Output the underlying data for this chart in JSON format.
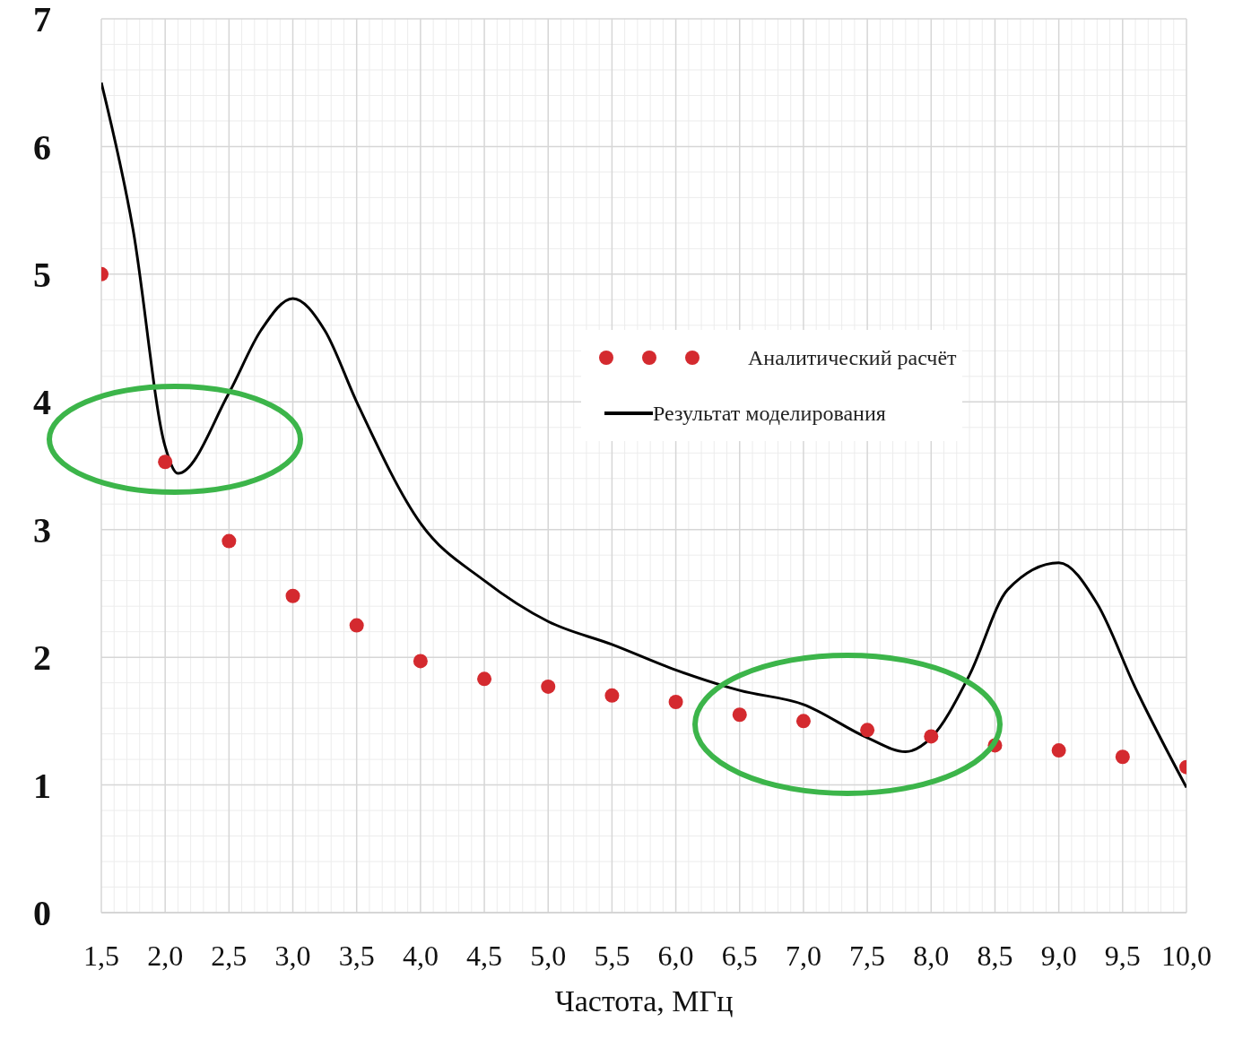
{
  "chart_data": {
    "type": "scatter",
    "xlabel": "Частота, МГц",
    "xlim": [
      1.5,
      10
    ],
    "xticks": [
      {
        "value": 1.5,
        "label": "1,5"
      },
      {
        "value": 2,
        "label": "2,0"
      },
      {
        "value": 2.5,
        "label": "2,5"
      },
      {
        "value": 3,
        "label": "3,0"
      },
      {
        "value": 3.5,
        "label": "3,5"
      },
      {
        "value": 4,
        "label": "4,0"
      },
      {
        "value": 4.5,
        "label": "4,5"
      },
      {
        "value": 5,
        "label": "5,0"
      },
      {
        "value": 5.5,
        "label": "5,5"
      },
      {
        "value": 6,
        "label": "6,0"
      },
      {
        "value": 6.5,
        "label": "6,5"
      },
      {
        "value": 7,
        "label": "7,0"
      },
      {
        "value": 7.5,
        "label": "7,5"
      },
      {
        "value": 8,
        "label": "8,0"
      },
      {
        "value": 8.5,
        "label": "8,5"
      },
      {
        "value": 9,
        "label": "9,0"
      },
      {
        "value": 9.5,
        "label": "9,5"
      },
      {
        "value": 10,
        "label": "10,0"
      }
    ],
    "ylim": [
      0,
      7
    ],
    "yticks": [
      0,
      1,
      2,
      3,
      4,
      5,
      6,
      7
    ],
    "grid": true,
    "legend": "center",
    "series": [
      {
        "name": "Аналитический расчёт",
        "marker": "circle",
        "color": "#d42a2f",
        "x": [
          1.5,
          2,
          2.5,
          3,
          3.5,
          4,
          4.5,
          5,
          5.5,
          6,
          6.5,
          7,
          7.5,
          8,
          8.5,
          9,
          9.5,
          10
        ],
        "values": [
          5.0,
          3.53,
          2.91,
          2.48,
          2.25,
          1.97,
          1.83,
          1.77,
          1.7,
          1.65,
          1.55,
          1.5,
          1.43,
          1.38,
          1.31,
          1.27,
          1.22,
          1.14
        ]
      },
      {
        "name": "Результат моделирования",
        "type": "line",
        "marker": "none",
        "line_style": "solid",
        "color": "#000000",
        "x": [
          1.5,
          1.75,
          2,
          2.1,
          2.5,
          2.75,
          3,
          3.25,
          3.5,
          4,
          4.5,
          5,
          5.5,
          6,
          6.5,
          7,
          7.5,
          7.8,
          8,
          8.3,
          8.6,
          9,
          9.3,
          9.6,
          10
        ],
        "values": [
          6.5,
          5.34,
          3.65,
          3.44,
          4.07,
          4.56,
          4.81,
          4.56,
          4.0,
          3.05,
          2.6,
          2.28,
          2.1,
          1.9,
          1.74,
          1.63,
          1.37,
          1.26,
          1.37,
          1.86,
          2.53,
          2.74,
          2.42,
          1.76,
          0.98
        ]
      }
    ]
  }
}
